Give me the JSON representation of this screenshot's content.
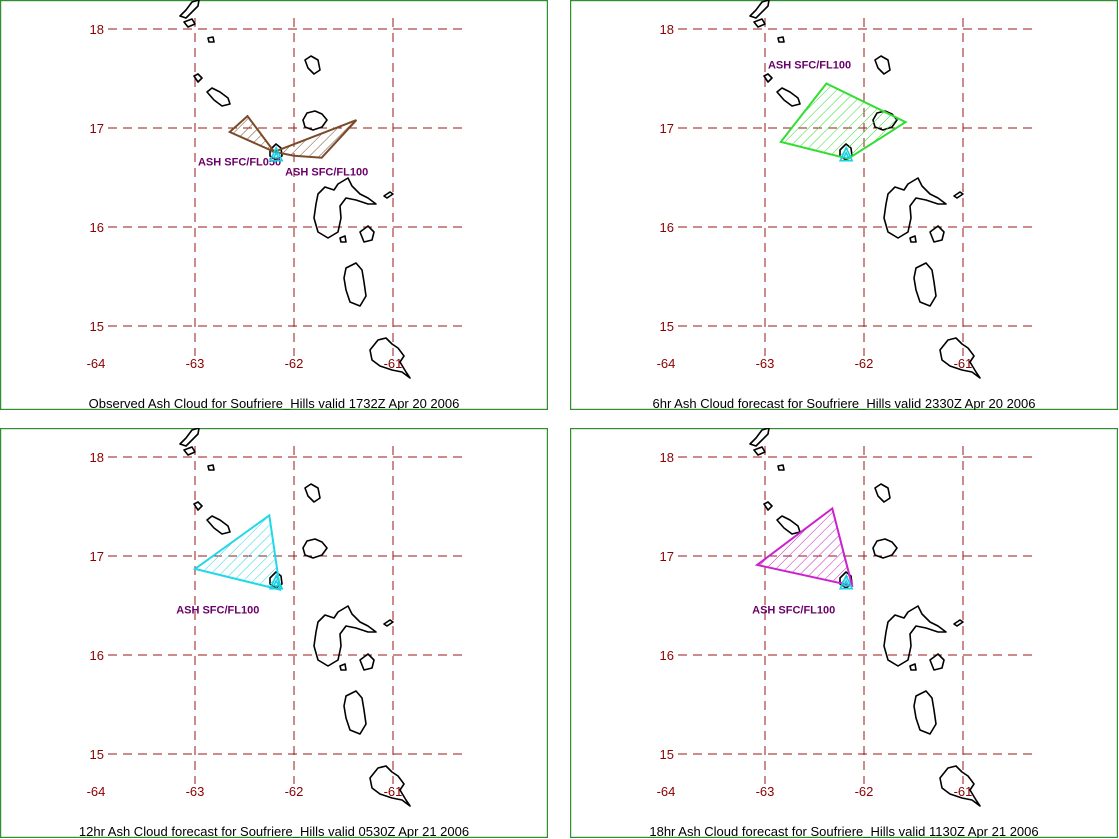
{
  "panels": [
    {
      "caption": "Observed Ash Cloud for Soufriere_Hills valid 1732Z Apr 20 2006",
      "x_ticks": [
        "-64",
        "-63",
        "-62",
        "-61"
      ],
      "y_ticks": [
        "18",
        "17",
        "16",
        "15"
      ],
      "clouds": [
        {
          "label": "ASH SFC/FL050",
          "color": "#7a4a2a",
          "points": [
            [
              -62.65,
              16.96
            ],
            [
              -62.47,
              17.12
            ],
            [
              -62.2,
              16.76
            ]
          ],
          "label_at": [
            -62.13,
            16.62
          ],
          "anchor": "end"
        },
        {
          "label": "ASH SFC/FL100",
          "color": "#7a4a2a",
          "points": [
            [
              -62.2,
              16.76
            ],
            [
              -61.37,
              17.08
            ],
            [
              -61.72,
              16.7
            ],
            [
              -62.0,
              16.72
            ]
          ],
          "label_at": [
            -62.09,
            16.52
          ],
          "anchor": "start"
        }
      ]
    },
    {
      "caption": "6hr Ash Cloud forecast for Soufriere_Hills valid 2330Z Apr 20 2006",
      "x_ticks": [
        "-64",
        "-63",
        "-62",
        "-61"
      ],
      "y_ticks": [
        "18",
        "17",
        "16",
        "15"
      ],
      "clouds": [
        {
          "label": "ASH SFC/FL100",
          "color": "#33dd33",
          "points": [
            [
              -62.84,
              16.86
            ],
            [
              -62.38,
              17.45
            ],
            [
              -61.58,
              17.06
            ],
            [
              -62.16,
              16.69
            ]
          ],
          "label_at": [
            -62.97,
            17.6
          ],
          "anchor": "start"
        }
      ]
    },
    {
      "caption": "12hr Ash Cloud forecast for Soufriere_Hills valid 0530Z Apr 21 2006",
      "x_ticks": [
        "-64",
        "-63",
        "-62",
        "-61"
      ],
      "y_ticks": [
        "18",
        "17",
        "16",
        "15"
      ],
      "clouds": [
        {
          "label": "ASH SFC/FL100",
          "color": "#22d8e8",
          "points": [
            [
              -63.0,
              16.87
            ],
            [
              -62.25,
              17.41
            ],
            [
              -62.14,
              16.66
            ]
          ],
          "label_at": [
            -63.19,
            16.42
          ],
          "anchor": "start"
        }
      ]
    },
    {
      "caption": "18hr Ash Cloud forecast for Soufriere_Hills valid 1130Z Apr 21 2006",
      "x_ticks": [
        "-64",
        "-63",
        "-62",
        "-61"
      ],
      "y_ticks": [
        "18",
        "17",
        "16",
        "15"
      ],
      "clouds": [
        {
          "label": "ASH SFC/FL100",
          "color": "#cc22cc",
          "points": [
            [
              -63.08,
              16.91
            ],
            [
              -62.32,
              17.48
            ],
            [
              -62.12,
              16.7
            ]
          ],
          "label_at": [
            -63.13,
            16.42
          ],
          "anchor": "start"
        }
      ]
    }
  ],
  "volcano": {
    "name": "Soufriere_Hills",
    "lon": -62.18,
    "lat": 16.72
  }
}
